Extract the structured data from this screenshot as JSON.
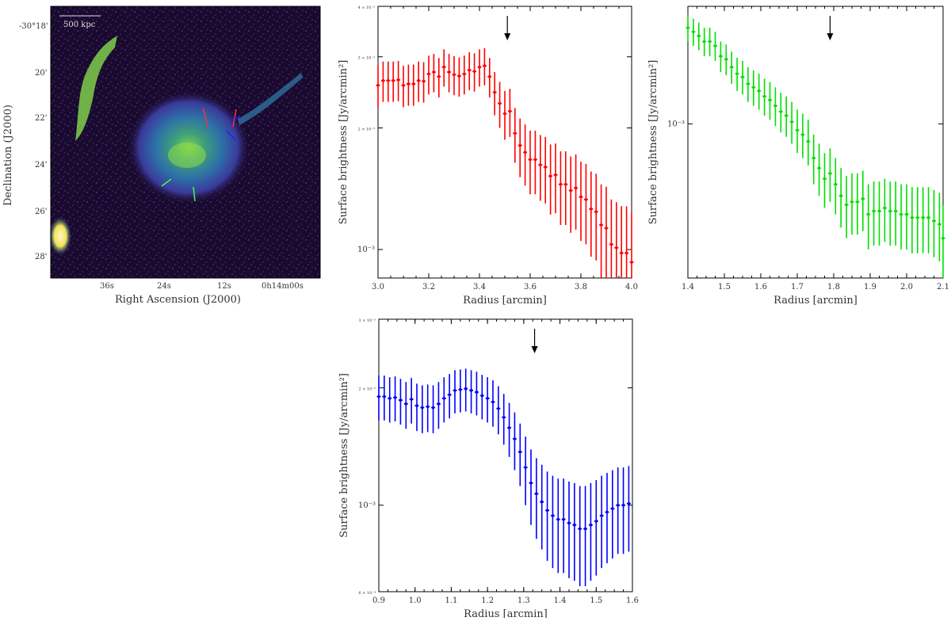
{
  "image_panel": {
    "scale_bar_label": "500 kpc",
    "xlabel": "Right Ascension (J2000)",
    "ylabel": "Declination (J2000)",
    "xticks": [
      "36s",
      "24s",
      "12s",
      "0h14m00s"
    ],
    "yticks": [
      "-30°18'",
      "20'",
      "22'",
      "24'",
      "26'",
      "28'"
    ],
    "colors": {
      "background": "#1a0a2e",
      "emission_mid": "#2f6f9e",
      "emission_high": "#6fcf4a",
      "peak": "#fff7c0"
    }
  },
  "chart_data": [
    {
      "type": "scatter",
      "name": "red-profile",
      "color": "#ff0000",
      "xlabel": "Radius [arcmin]",
      "ylabel": "Surface brightness [Jy/arcmin²]",
      "yscale": "log",
      "xlim": [
        3.0,
        4.0
      ],
      "ylim": [
        0.00085,
        0.004
      ],
      "xticks": [
        "3.0",
        "3.2",
        "3.4",
        "3.6",
        "3.8",
        "4.0"
      ],
      "xtick_values": [
        3.0,
        3.2,
        3.4,
        3.6,
        3.8,
        4.0
      ],
      "yticks": [
        "10⁻³",
        "2 × 10⁻³",
        "3 × 10⁻³",
        "4 × 10⁻³"
      ],
      "ytick_values": [
        0.001,
        0.002,
        0.003,
        0.004
      ],
      "arrow_x": 3.51,
      "points": [
        [
          3.0,
          0.00255
        ],
        [
          3.02,
          0.00262
        ],
        [
          3.04,
          0.00262
        ],
        [
          3.06,
          0.00262
        ],
        [
          3.08,
          0.00263
        ],
        [
          3.1,
          0.00255
        ],
        [
          3.12,
          0.00257
        ],
        [
          3.14,
          0.00257
        ],
        [
          3.16,
          0.00262
        ],
        [
          3.18,
          0.00261
        ],
        [
          3.2,
          0.00272
        ],
        [
          3.22,
          0.00275
        ],
        [
          3.24,
          0.00268
        ],
        [
          3.26,
          0.00283
        ],
        [
          3.28,
          0.00275
        ],
        [
          3.3,
          0.00271
        ],
        [
          3.32,
          0.00269
        ],
        [
          3.34,
          0.00272
        ],
        [
          3.36,
          0.00278
        ],
        [
          3.38,
          0.00276
        ],
        [
          3.4,
          0.00283
        ],
        [
          3.42,
          0.00285
        ],
        [
          3.44,
          0.00268
        ],
        [
          3.46,
          0.00245
        ],
        [
          3.48,
          0.0023
        ],
        [
          3.5,
          0.00217
        ],
        [
          3.52,
          0.0022
        ],
        [
          3.54,
          0.00194
        ],
        [
          3.56,
          0.00181
        ],
        [
          3.58,
          0.00174
        ],
        [
          3.6,
          0.00167
        ],
        [
          3.62,
          0.00167
        ],
        [
          3.64,
          0.00162
        ],
        [
          3.66,
          0.0016
        ],
        [
          3.68,
          0.00152
        ],
        [
          3.7,
          0.00153
        ],
        [
          3.72,
          0.00145
        ],
        [
          3.74,
          0.00145
        ],
        [
          3.76,
          0.0014
        ],
        [
          3.78,
          0.00142
        ],
        [
          3.8,
          0.00135
        ],
        [
          3.82,
          0.00133
        ],
        [
          3.84,
          0.00126
        ],
        [
          3.86,
          0.00124
        ],
        [
          3.88,
          0.00115
        ],
        [
          3.9,
          0.00113
        ],
        [
          3.92,
          0.00103
        ],
        [
          3.94,
          0.00101
        ],
        [
          3.96,
          0.00098
        ],
        [
          3.98,
          0.00098
        ],
        [
          4.0,
          0.00093
        ]
      ],
      "errors": [
        0.0003,
        0.0003,
        0.0003,
        0.0003,
        0.0003,
        0.0003,
        0.0003,
        0.0003,
        0.0003,
        0.0003,
        0.0003,
        0.0003,
        0.0003,
        0.0003,
        0.0003,
        0.0003,
        0.0003,
        0.0003,
        0.0003,
        0.0003,
        0.0003,
        0.0003,
        0.0003,
        0.0003,
        0.0003,
        0.0003,
        0.0003,
        0.0003,
        0.0003,
        0.0003,
        0.0003,
        0.0003,
        0.0003,
        0.0003,
        0.0003,
        0.0003,
        0.0003,
        0.0003,
        0.0003,
        0.0003,
        0.0003,
        0.0003,
        0.0003,
        0.0003,
        0.0003,
        0.0003,
        0.0003,
        0.0003,
        0.0003,
        0.0003,
        0.0003
      ]
    },
    {
      "type": "scatter",
      "name": "green-profile",
      "color": "#00e000",
      "xlabel": "Radius [arcmin]",
      "ylabel": "Surface brightness [Jy/arcmin²]",
      "yscale": "log",
      "xlim": [
        1.4,
        2.1
      ],
      "ylim": [
        0.00048,
        0.00175
      ],
      "xticks": [
        "1.4",
        "1.5",
        "1.6",
        "1.7",
        "1.8",
        "1.9",
        "2.0",
        "2.1"
      ],
      "xtick_values": [
        1.4,
        1.5,
        1.6,
        1.7,
        1.8,
        1.9,
        2.0,
        2.1
      ],
      "yticks": [
        "10⁻³"
      ],
      "ytick_values": [
        0.001
      ],
      "arrow_x": 1.79,
      "points": [
        [
          1.4,
          0.00158
        ],
        [
          1.415,
          0.00155
        ],
        [
          1.43,
          0.00152
        ],
        [
          1.445,
          0.00148
        ],
        [
          1.46,
          0.00148
        ],
        [
          1.475,
          0.00145
        ],
        [
          1.49,
          0.00138
        ],
        [
          1.505,
          0.00136
        ],
        [
          1.52,
          0.00131
        ],
        [
          1.535,
          0.00127
        ],
        [
          1.55,
          0.00125
        ],
        [
          1.565,
          0.00121
        ],
        [
          1.58,
          0.00119
        ],
        [
          1.595,
          0.00117
        ],
        [
          1.61,
          0.00114
        ],
        [
          1.625,
          0.00112
        ],
        [
          1.64,
          0.00109
        ],
        [
          1.655,
          0.00106
        ],
        [
          1.67,
          0.00104
        ],
        [
          1.685,
          0.00101
        ],
        [
          1.7,
          0.00097
        ],
        [
          1.715,
          0.00095
        ],
        [
          1.73,
          0.00092
        ],
        [
          1.745,
          0.00085
        ],
        [
          1.76,
          0.00081
        ],
        [
          1.775,
          0.00077
        ],
        [
          1.79,
          0.00079
        ],
        [
          1.805,
          0.00075
        ],
        [
          1.82,
          0.00071
        ],
        [
          1.835,
          0.00068
        ],
        [
          1.85,
          0.00069
        ],
        [
          1.865,
          0.00069
        ],
        [
          1.88,
          0.0007
        ],
        [
          1.895,
          0.00065
        ],
        [
          1.91,
          0.00066
        ],
        [
          1.925,
          0.00066
        ],
        [
          1.94,
          0.00067
        ],
        [
          1.955,
          0.00066
        ],
        [
          1.97,
          0.00066
        ],
        [
          1.985,
          0.00065
        ],
        [
          2.0,
          0.00065
        ],
        [
          2.015,
          0.00064
        ],
        [
          2.03,
          0.00064
        ],
        [
          2.045,
          0.00064
        ],
        [
          2.06,
          0.00064
        ],
        [
          2.075,
          0.00063
        ],
        [
          2.09,
          0.00062
        ],
        [
          2.1,
          0.00058
        ]
      ],
      "errors": [
        0.0001,
        0.0001,
        0.0001,
        0.0001,
        0.0001,
        0.0001,
        0.0001,
        0.0001,
        0.0001,
        0.0001,
        0.0001,
        0.0001,
        0.0001,
        0.0001,
        0.0001,
        0.0001,
        0.0001,
        0.0001,
        0.0001,
        0.0001,
        0.0001,
        0.0001,
        0.0001,
        0.0001,
        0.0001,
        0.0001,
        0.0001,
        0.0001,
        0.0001,
        0.0001,
        0.0001,
        0.0001,
        0.0001,
        0.0001,
        0.0001,
        0.0001,
        0.0001,
        0.0001,
        0.0001,
        0.0001,
        0.0001,
        0.0001,
        0.0001,
        0.0001,
        0.0001,
        0.0001,
        0.0001,
        0.0001
      ]
    },
    {
      "type": "scatter",
      "name": "blue-profile",
      "color": "#0000ff",
      "xlabel": "Radius [arcmin]",
      "ylabel": "Surface brightness [Jy/arcmin²]",
      "yscale": "log",
      "xlim": [
        0.9,
        1.6
      ],
      "ylim": [
        0.0006,
        0.003
      ],
      "xticks": [
        "0.9",
        "1.0",
        "1.1",
        "1.2",
        "1.3",
        "1.4",
        "1.5",
        "1.6"
      ],
      "xtick_values": [
        0.9,
        1.0,
        1.1,
        1.2,
        1.3,
        1.4,
        1.5,
        1.6
      ],
      "yticks": [
        "6 × 10⁻⁴",
        "10⁻³",
        "2 × 10⁻³",
        "3 × 10⁻³"
      ],
      "ytick_values": [
        0.0006,
        0.001,
        0.002,
        0.003
      ],
      "arrow_x": 1.33,
      "points": [
        [
          0.9,
          0.0019
        ],
        [
          0.915,
          0.0019
        ],
        [
          0.93,
          0.00188
        ],
        [
          0.945,
          0.00189
        ],
        [
          0.96,
          0.00186
        ],
        [
          0.975,
          0.00182
        ],
        [
          0.99,
          0.00187
        ],
        [
          1.005,
          0.0018
        ],
        [
          1.02,
          0.00178
        ],
        [
          1.035,
          0.00179
        ],
        [
          1.05,
          0.00178
        ],
        [
          1.065,
          0.00182
        ],
        [
          1.08,
          0.00188
        ],
        [
          1.095,
          0.00192
        ],
        [
          1.11,
          0.00197
        ],
        [
          1.125,
          0.00198
        ],
        [
          1.14,
          0.00199
        ],
        [
          1.155,
          0.00197
        ],
        [
          1.17,
          0.00195
        ],
        [
          1.185,
          0.00191
        ],
        [
          1.2,
          0.00188
        ],
        [
          1.215,
          0.00184
        ],
        [
          1.23,
          0.00177
        ],
        [
          1.245,
          0.00168
        ],
        [
          1.26,
          0.00158
        ],
        [
          1.275,
          0.00148
        ],
        [
          1.29,
          0.00137
        ],
        [
          1.305,
          0.00125
        ],
        [
          1.32,
          0.00114
        ],
        [
          1.335,
          0.00107
        ],
        [
          1.35,
          0.00102
        ],
        [
          1.365,
          0.00097
        ],
        [
          1.38,
          0.00094
        ],
        [
          1.395,
          0.00092
        ],
        [
          1.41,
          0.00092
        ],
        [
          1.425,
          0.0009
        ],
        [
          1.44,
          0.00089
        ],
        [
          1.455,
          0.00087
        ],
        [
          1.47,
          0.00087
        ],
        [
          1.485,
          0.00089
        ],
        [
          1.5,
          0.00091
        ],
        [
          1.515,
          0.00094
        ],
        [
          1.53,
          0.00096
        ],
        [
          1.545,
          0.00098
        ],
        [
          1.56,
          0.001
        ],
        [
          1.575,
          0.001
        ],
        [
          1.59,
          0.00101
        ]
      ],
      "errors": [
        0.00025,
        0.00025,
        0.00025,
        0.00025,
        0.00025,
        0.00025,
        0.00025,
        0.00025,
        0.00025,
        0.00025,
        0.00025,
        0.00025,
        0.00025,
        0.00025,
        0.00025,
        0.00025,
        0.00025,
        0.00025,
        0.00025,
        0.00025,
        0.00025,
        0.00025,
        0.00025,
        0.00025,
        0.00025,
        0.00025,
        0.00025,
        0.00025,
        0.00025,
        0.00025,
        0.00025,
        0.00025,
        0.00025,
        0.00025,
        0.00025,
        0.00025,
        0.00025,
        0.00025,
        0.00025,
        0.00025,
        0.00025,
        0.00025,
        0.00025,
        0.00025,
        0.00025,
        0.00025,
        0.00025
      ]
    }
  ]
}
